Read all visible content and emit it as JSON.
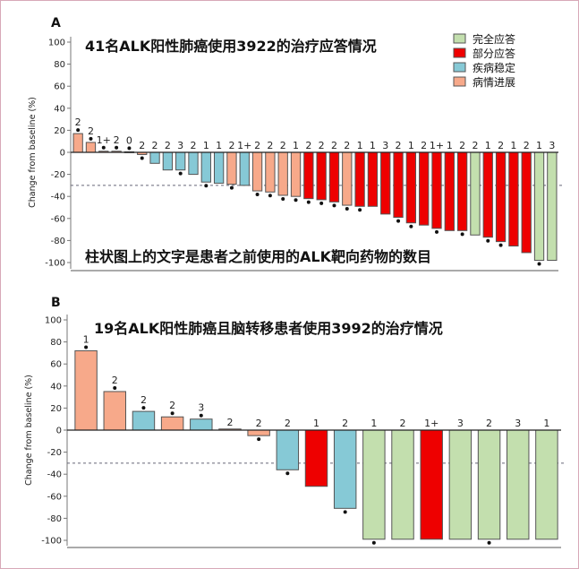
{
  "colors": {
    "complete_response": "#c3dfae",
    "partial_response": "#ee0000",
    "stable_disease": "#86c9d6",
    "progressive_disease": "#f7a98a"
  },
  "legend": [
    {
      "label": "完全应答",
      "key": "CR"
    },
    {
      "label": "部分应答",
      "key": "PR"
    },
    {
      "label": "疾病稳定",
      "key": "SD"
    },
    {
      "label": "病情进展",
      "key": "PD"
    }
  ],
  "chart_data": [
    {
      "panel": "A",
      "type": "bar",
      "title": "41名ALK阳性肺癌使用3922的治疗应答情况",
      "annotation": "柱状图上的文字是患者之前使用的ALK靶向药物的数目",
      "ylabel": "Change from baseline (%)",
      "ylim": [
        -100,
        100
      ],
      "yticks": [
        "100",
        "80",
        "60",
        "40",
        "20",
        "0",
        "-20",
        "-40",
        "-60",
        "-80",
        "-100"
      ],
      "reference_line": -30,
      "grid": false,
      "legend_position": "top-right",
      "bar_labels": [
        "2",
        "2",
        "1+",
        "2",
        "0",
        "2",
        "2",
        "2",
        "3",
        "2",
        "1",
        "1",
        "2",
        "1+",
        "2",
        "2",
        "2",
        "1",
        "2",
        "2",
        "2",
        "2",
        "1",
        "1",
        "3",
        "2",
        "1",
        "2",
        "1+",
        "1",
        "2",
        "2",
        "1",
        "2",
        "1",
        "2",
        "1",
        "3"
      ],
      "values": [
        17,
        9,
        1,
        1,
        0.5,
        -2,
        -10,
        -16,
        -16,
        -20,
        -27,
        -28,
        -29,
        -30,
        -35,
        -36,
        -39,
        -40,
        -42,
        -43,
        -45,
        -48,
        -49,
        -49,
        -56,
        -59,
        -64,
        -66,
        -69,
        -71,
        -71,
        -75,
        -77,
        -81,
        -85,
        -91,
        -98,
        -98
      ],
      "response": [
        "PD",
        "PD",
        "PD",
        "PD",
        "PD",
        "PD",
        "SD",
        "SD",
        "SD",
        "SD",
        "SD",
        "SD",
        "PD",
        "SD",
        "PD",
        "PD",
        "PD",
        "PD",
        "PR",
        "PR",
        "PR",
        "PD",
        "PR",
        "PR",
        "PR",
        "PR",
        "PR",
        "PR",
        "PR",
        "PR",
        "PR",
        "CR",
        "PR",
        "PR",
        "PR",
        "PR",
        "CR",
        "CR"
      ],
      "dots": [
        1,
        1,
        1,
        1,
        1,
        1,
        0,
        0,
        1,
        0,
        1,
        0,
        1,
        0,
        1,
        1,
        1,
        1,
        1,
        1,
        1,
        1,
        1,
        0,
        0,
        1,
        1,
        0,
        1,
        0,
        1,
        0,
        1,
        1,
        0,
        0,
        1,
        0
      ]
    },
    {
      "panel": "B",
      "type": "bar",
      "title": "19名ALK阳性肺癌且脑转移患者使用3992的治疗情况",
      "ylabel": "Change from baseline (%)",
      "ylim": [
        -100,
        100
      ],
      "yticks": [
        "100",
        "80",
        "60",
        "40",
        "20",
        "0",
        "-20",
        "-40",
        "-60",
        "-80",
        "-100"
      ],
      "reference_line": -30,
      "grid": false,
      "bar_labels": [
        "1",
        "2",
        "2",
        "2",
        "3",
        "2",
        "2",
        "2",
        "1",
        "2",
        "1",
        "2",
        "1+",
        "3",
        "2",
        "3",
        "1"
      ],
      "values": [
        72,
        35,
        17,
        12,
        10,
        1,
        -5,
        -36,
        -51,
        -71,
        -99,
        -99,
        -99,
        -99,
        -99,
        -99,
        -99
      ],
      "response": [
        "PD",
        "PD",
        "SD",
        "PD",
        "SD",
        "PD",
        "PD",
        "SD",
        "PR",
        "SD",
        "CR",
        "CR",
        "PR",
        "CR",
        "CR",
        "CR",
        "CR"
      ],
      "dots": [
        1,
        1,
        1,
        1,
        1,
        0,
        1,
        1,
        0,
        1,
        1,
        0,
        0,
        0,
        1,
        0,
        0
      ]
    }
  ]
}
